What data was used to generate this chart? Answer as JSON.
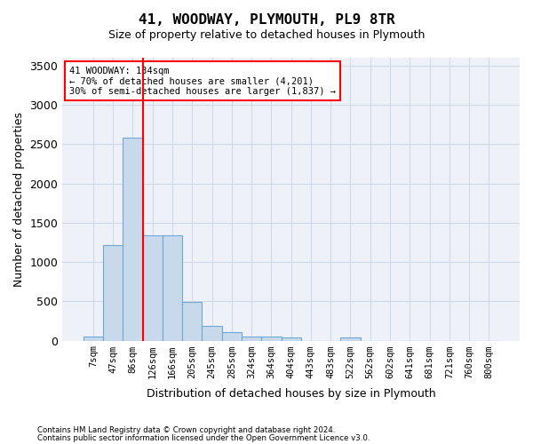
{
  "title": "41, WOODWAY, PLYMOUTH, PL9 8TR",
  "subtitle": "Size of property relative to detached houses in Plymouth",
  "xlabel": "Distribution of detached houses by size in Plymouth",
  "ylabel": "Number of detached properties",
  "bar_color": "#c9d9ec",
  "bar_edge_color": "#6fa8d4",
  "grid_color": "#d0d8e8",
  "background_color": "#eef2f8",
  "categories": [
    "7sqm",
    "47sqm",
    "86sqm",
    "126sqm",
    "166sqm",
    "205sqm",
    "245sqm",
    "285sqm",
    "324sqm",
    "364sqm",
    "404sqm",
    "443sqm",
    "483sqm",
    "522sqm",
    "562sqm",
    "602sqm",
    "641sqm",
    "681sqm",
    "721sqm",
    "760sqm",
    "800sqm"
  ],
  "values": [
    50,
    1220,
    2580,
    1340,
    1340,
    490,
    190,
    105,
    50,
    50,
    45,
    0,
    0,
    40,
    0,
    0,
    0,
    0,
    0,
    0,
    0
  ],
  "ylim": [
    0,
    3600
  ],
  "yticks": [
    0,
    500,
    1000,
    1500,
    2000,
    2500,
    3000,
    3500
  ],
  "red_line_bin": 3,
  "annotation_title": "41 WOODWAY: 134sqm",
  "annotation_line1": "← 70% of detached houses are smaller (4,201)",
  "annotation_line2": "30% of semi-detached houses are larger (1,837) →",
  "footer_line1": "Contains HM Land Registry data © Crown copyright and database right 2024.",
  "footer_line2": "Contains public sector information licensed under the Open Government Licence v3.0."
}
